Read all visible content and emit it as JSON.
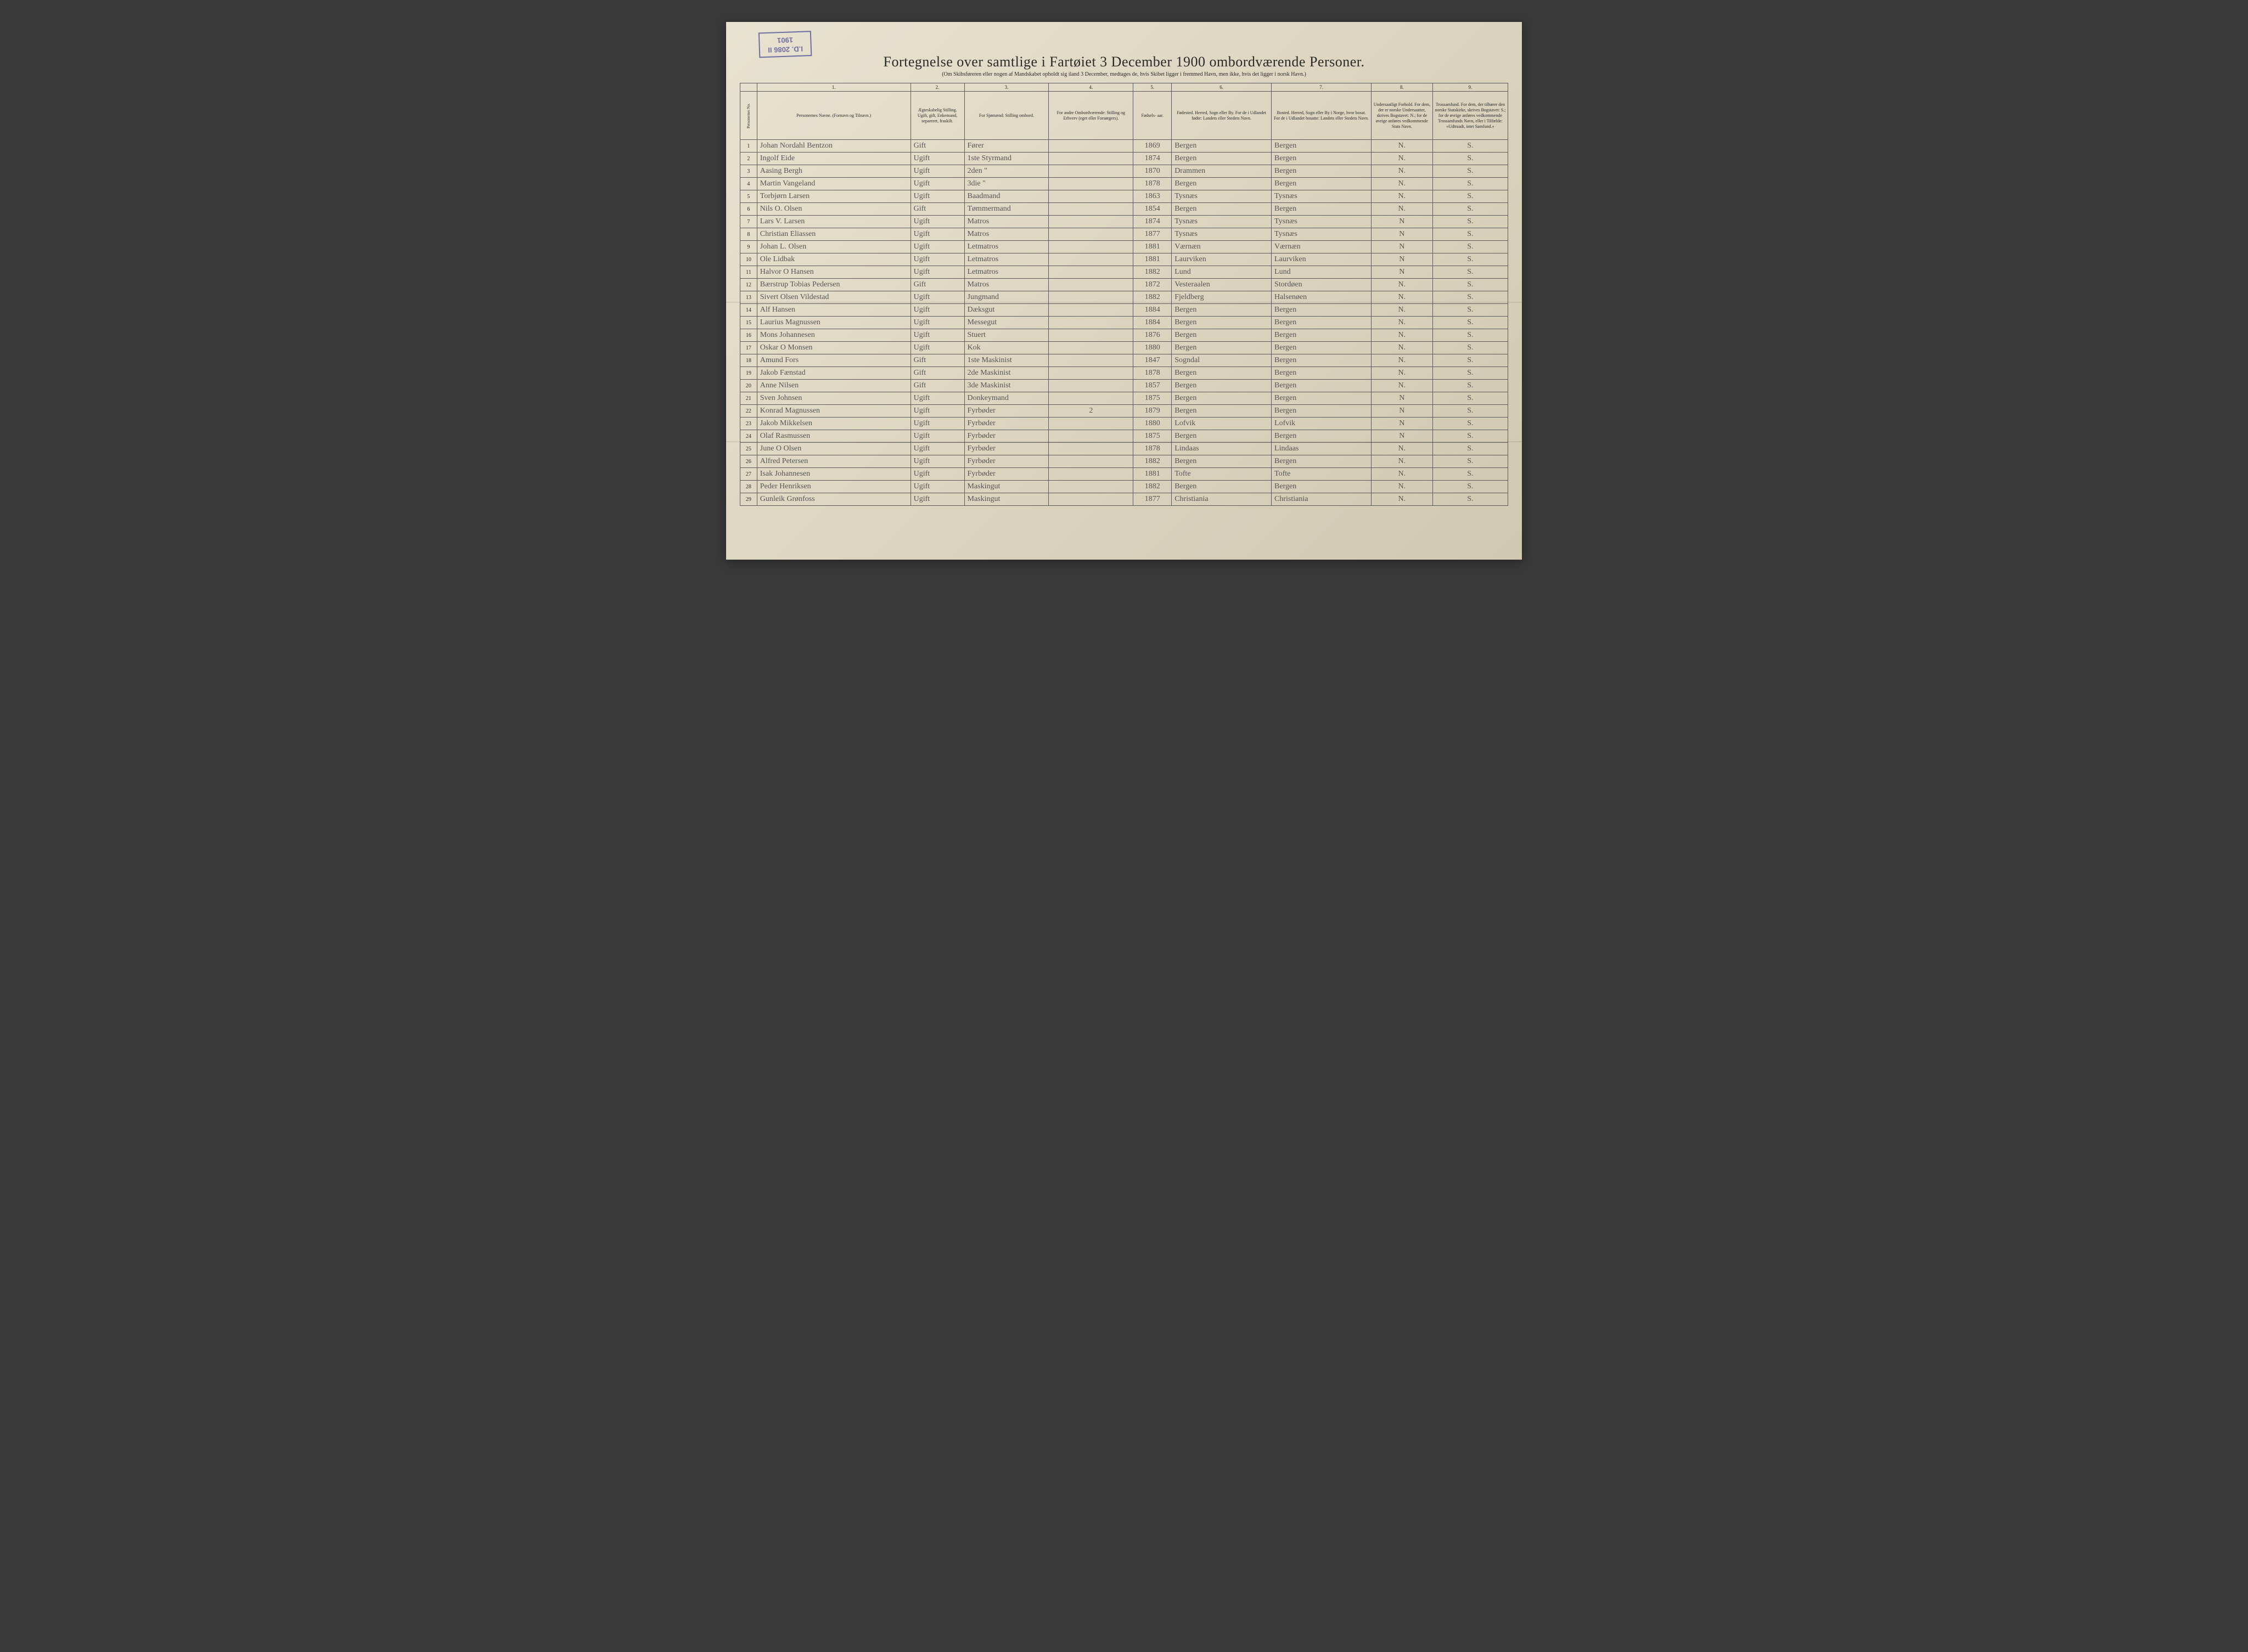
{
  "stamp": {
    "line1": "I.D. 2086 II",
    "line2": "1901"
  },
  "title": "Fortegnelse over samtlige i Fartøiet 3 December 1900 ombordværende Personer.",
  "subtitle": "(Om Skibsføreren eller nogen af Mandskabet opholdt sig iland 3 December, medtages de, hvis Skibet ligger i fremmed Havn, men ikke, hvis det ligger i norsk Havn.)",
  "columns": {
    "nums": [
      "",
      "1.",
      "2.",
      "3.",
      "4.",
      "5.",
      "6.",
      "7.",
      "8.",
      "9."
    ],
    "headers": [
      "Personernes No.",
      "Personernes Navne.\n(Fornavn og Tilnavn.)",
      "Ægteskabelig Stilling.\nUgift, gift, Enkemand, separeret, fraskilt.",
      "For Sjømænd:\nStilling ombord.",
      "For andre Ombordværende:\nStilling og Erhverv\n(eget eller Forsørgers).",
      "Fødsels-\naar.",
      "Fødested.\nHerred, Sogn eller By.\nFor de i Udlandet fødte:\nLandets eller Stedets Navn.",
      "Bosted.\nHerred, Sogn eller By i Norge, hvor bosat.\nFor de i Udlandet bosatte:\nLandets eller Stedets Navn.",
      "Undersaatligt Forhold.\nFor dem, der er norske Undersaatter, skrives Bogstavet: N.; for de øvrige anføres vedkommende Stats Navn.",
      "Trossamfund.\nFor dem, der tilhører den norske Statskirke, skrives Bogstavet: S.; for de øvrige anføres vedkommende Trossamfunds Navn, eller i Tilfælde: «Udtraadt, intet Samfund.»"
    ]
  },
  "rows": [
    {
      "n": "1",
      "name": "Johan Nordahl Bentzon",
      "civil": "Gift",
      "pos": "Fører",
      "other": "",
      "year": "1869",
      "birth": "Bergen",
      "res": "Bergen",
      "nat": "N.",
      "rel": "S."
    },
    {
      "n": "2",
      "name": "Ingolf Eide",
      "civil": "Ugift",
      "pos": "1ste Styrmand",
      "other": "",
      "year": "1874",
      "birth": "Bergen",
      "res": "Bergen",
      "nat": "N.",
      "rel": "S."
    },
    {
      "n": "3",
      "name": "Aasing Bergh",
      "civil": "Ugift",
      "pos": "2den   \"",
      "other": "",
      "year": "1870",
      "birth": "Drammen",
      "res": "Bergen",
      "nat": "N.",
      "rel": "S."
    },
    {
      "n": "4",
      "name": "Martin Vangeland",
      "civil": "Ugift",
      "pos": "3die   \"",
      "other": "",
      "year": "1878",
      "birth": "Bergen",
      "res": "Bergen",
      "nat": "N.",
      "rel": "S."
    },
    {
      "n": "5",
      "name": "Torbjørn Larsen",
      "civil": "Ugift",
      "pos": "Baadmand",
      "other": "",
      "year": "1863",
      "birth": "Tysnæs",
      "res": "Tysnæs",
      "nat": "N.",
      "rel": "S."
    },
    {
      "n": "6",
      "name": "Nils O. Olsen",
      "civil": "Gift",
      "pos": "Tømmermand",
      "other": "",
      "year": "1854",
      "birth": "Bergen",
      "res": "Bergen",
      "nat": "N.",
      "rel": "S."
    },
    {
      "n": "7",
      "name": "Lars V. Larsen",
      "civil": "Ugift",
      "pos": "Matros",
      "other": "",
      "year": "1874",
      "birth": "Tysnæs",
      "res": "Tysnæs",
      "nat": "N",
      "rel": "S."
    },
    {
      "n": "8",
      "name": "Christian Eliassen",
      "civil": "Ugift",
      "pos": "Matros",
      "other": "",
      "year": "1877",
      "birth": "Tysnæs",
      "res": "Tysnæs",
      "nat": "N",
      "rel": "S."
    },
    {
      "n": "9",
      "name": "Johan L. Olsen",
      "civil": "Ugift",
      "pos": "Letmatros",
      "other": "",
      "year": "1881",
      "birth": "Værnæn",
      "res": "Værnæn",
      "nat": "N",
      "rel": "S."
    },
    {
      "n": "10",
      "name": "Ole Lidbak",
      "civil": "Ugift",
      "pos": "Letmatros",
      "other": "",
      "year": "1881",
      "birth": "Laurviken",
      "res": "Laurviken",
      "nat": "N",
      "rel": "S."
    },
    {
      "n": "11",
      "name": "Halvor O Hansen",
      "civil": "Ugift",
      "pos": "Letmatros",
      "other": "",
      "year": "1882",
      "birth": "Lund",
      "res": "Lund",
      "nat": "N",
      "rel": "S."
    },
    {
      "n": "12",
      "name": "Bærstrup Tobias Pedersen",
      "civil": "Gift",
      "pos": "Matros",
      "other": "",
      "year": "1872",
      "birth": "Vesteraalen",
      "res": "Stordøen",
      "nat": "N.",
      "rel": "S."
    },
    {
      "n": "13",
      "name": "Sivert Olsen Vildestad",
      "civil": "Ugift",
      "pos": "Jungmand",
      "other": "",
      "year": "1882",
      "birth": "Fjeldberg",
      "res": "Halsenøen",
      "nat": "N.",
      "rel": "S."
    },
    {
      "n": "14",
      "name": "Alf Hansen",
      "civil": "Ugift",
      "pos": "Dæksgut",
      "other": "",
      "year": "1884",
      "birth": "Bergen",
      "res": "Bergen",
      "nat": "N.",
      "rel": "S."
    },
    {
      "n": "15",
      "name": "Laurius Magnussen",
      "civil": "Ugift",
      "pos": "Messegut",
      "other": "",
      "year": "1884",
      "birth": "Bergen",
      "res": "Bergen",
      "nat": "N.",
      "rel": "S."
    },
    {
      "n": "16",
      "name": "Mons Johannesen",
      "civil": "Ugift",
      "pos": "Stuert",
      "other": "",
      "year": "1876",
      "birth": "Bergen",
      "res": "Bergen",
      "nat": "N.",
      "rel": "S."
    },
    {
      "n": "17",
      "name": "Oskar O Monsen",
      "civil": "Ugift",
      "pos": "Kok",
      "other": "",
      "year": "1880",
      "birth": "Bergen",
      "res": "Bergen",
      "nat": "N.",
      "rel": "S."
    },
    {
      "n": "18",
      "name": "Amund Fors",
      "civil": "Gift",
      "pos": "1ste Maskinist",
      "other": "",
      "year": "1847",
      "birth": "Sogndal",
      "res": "Bergen",
      "nat": "N.",
      "rel": "S."
    },
    {
      "n": "19",
      "name": "Jakob Fænstad",
      "civil": "Gift",
      "pos": "2de Maskinist",
      "other": "",
      "year": "1878",
      "birth": "Bergen",
      "res": "Bergen",
      "nat": "N.",
      "rel": "S."
    },
    {
      "n": "20",
      "name": "Anne Nilsen",
      "civil": "Gift",
      "pos": "3de Maskinist",
      "other": "",
      "year": "1857",
      "birth": "Bergen",
      "res": "Bergen",
      "nat": "N.",
      "rel": "S."
    },
    {
      "n": "21",
      "name": "Sven Johnsen",
      "civil": "Ugift",
      "pos": "Donkeymand",
      "other": "",
      "year": "1875",
      "birth": "Bergen",
      "res": "Bergen",
      "nat": "N",
      "rel": "S."
    },
    {
      "n": "22",
      "name": "Konrad Magnussen",
      "civil": "Ugift",
      "pos": "Fyrbøder",
      "other": "2",
      "year": "1879",
      "birth": "Bergen",
      "res": "Bergen",
      "nat": "N",
      "rel": "S."
    },
    {
      "n": "23",
      "name": "Jakob Mikkelsen",
      "civil": "Ugift",
      "pos": "Fyrbøder",
      "other": "",
      "year": "1880",
      "birth": "Lofvik",
      "res": "Lofvik",
      "nat": "N",
      "rel": "S."
    },
    {
      "n": "24",
      "name": "Olaf Rasmussen",
      "civil": "Ugift",
      "pos": "Fyrbøder",
      "other": "",
      "year": "1875",
      "birth": "Bergen",
      "res": "Bergen",
      "nat": "N",
      "rel": "S."
    },
    {
      "n": "25",
      "name": "June O Olsen",
      "civil": "Ugift",
      "pos": "Fyrbøder",
      "other": "",
      "year": "1878",
      "birth": "Lindaas",
      "res": "Lindaas",
      "nat": "N.",
      "rel": "S."
    },
    {
      "n": "26",
      "name": "Alfred Petersen",
      "civil": "Ugift",
      "pos": "Fyrbøder",
      "other": "",
      "year": "1882",
      "birth": "Bergen",
      "res": "Bergen",
      "nat": "N.",
      "rel": "S."
    },
    {
      "n": "27",
      "name": "Isak Johannesen",
      "civil": "Ugift",
      "pos": "Fyrbøder",
      "other": "",
      "year": "1881",
      "birth": "Tofte",
      "res": "Tofte",
      "nat": "N.",
      "rel": "S."
    },
    {
      "n": "28",
      "name": "Peder Henriksen",
      "civil": "Ugift",
      "pos": "Maskingut",
      "other": "",
      "year": "1882",
      "birth": "Bergen",
      "res": "Bergen",
      "nat": "N.",
      "rel": "S."
    },
    {
      "n": "29",
      "name": "Gunleik Grønfoss",
      "civil": "Ugift",
      "pos": "Maskingut",
      "other": "",
      "year": "1877",
      "birth": "Christiania",
      "res": "Christiania",
      "nat": "N.",
      "rel": "S."
    }
  ]
}
